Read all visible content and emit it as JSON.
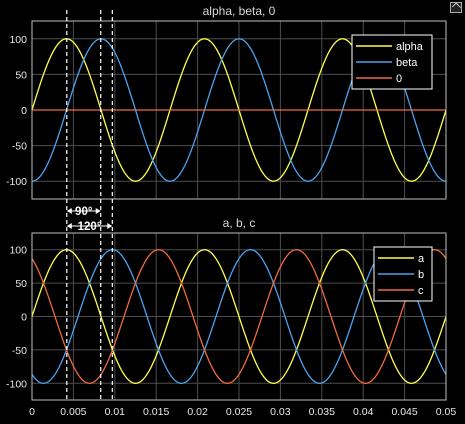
{
  "chart_data": [
    {
      "type": "line",
      "title": "alpha, beta, 0",
      "xlim": [
        0,
        0.05
      ],
      "ylim": [
        -125,
        125
      ],
      "yticks": [
        -100,
        -50,
        0,
        50,
        100
      ],
      "xticks": [],
      "grid": true,
      "legend_position": "top-right",
      "series": [
        {
          "name": "alpha",
          "color": "#ffff4d",
          "amplitude": 100,
          "frequency_hz": 60,
          "phase_deg": 0
        },
        {
          "name": "beta",
          "color": "#4aa3f0",
          "amplitude": 100,
          "frequency_hz": 60,
          "phase_deg": -90
        },
        {
          "name": "0",
          "color": "#f06a3c",
          "amplitude": 0,
          "frequency_hz": 60,
          "phase_deg": 0
        }
      ]
    },
    {
      "type": "line",
      "title": "a, b, c",
      "xlim": [
        0,
        0.05
      ],
      "ylim": [
        -125,
        125
      ],
      "yticks": [
        -100,
        -50,
        0,
        50,
        100
      ],
      "xticks": [
        0,
        0.005,
        0.01,
        0.015,
        0.02,
        0.025,
        0.03,
        0.035,
        0.04,
        0.045,
        0.05
      ],
      "grid": true,
      "legend_position": "top-right",
      "series": [
        {
          "name": "a",
          "color": "#ffff4d",
          "amplitude": 100,
          "frequency_hz": 60,
          "phase_deg": 0
        },
        {
          "name": "b",
          "color": "#4aa3f0",
          "amplitude": 100,
          "frequency_hz": 60,
          "phase_deg": -120
        },
        {
          "name": "c",
          "color": "#f06a3c",
          "amplitude": 100,
          "frequency_hz": 60,
          "phase_deg": 120
        }
      ]
    }
  ],
  "annotations": {
    "phase_90": "90°",
    "phase_120": "120°",
    "marker_times": [
      0.0042,
      0.0083,
      0.0097
    ]
  },
  "colors": {
    "background": "#000000",
    "axes": "#000000",
    "grid": "#4d4d4d",
    "frame": "#bfbfbf",
    "marker": "#ffffff"
  }
}
